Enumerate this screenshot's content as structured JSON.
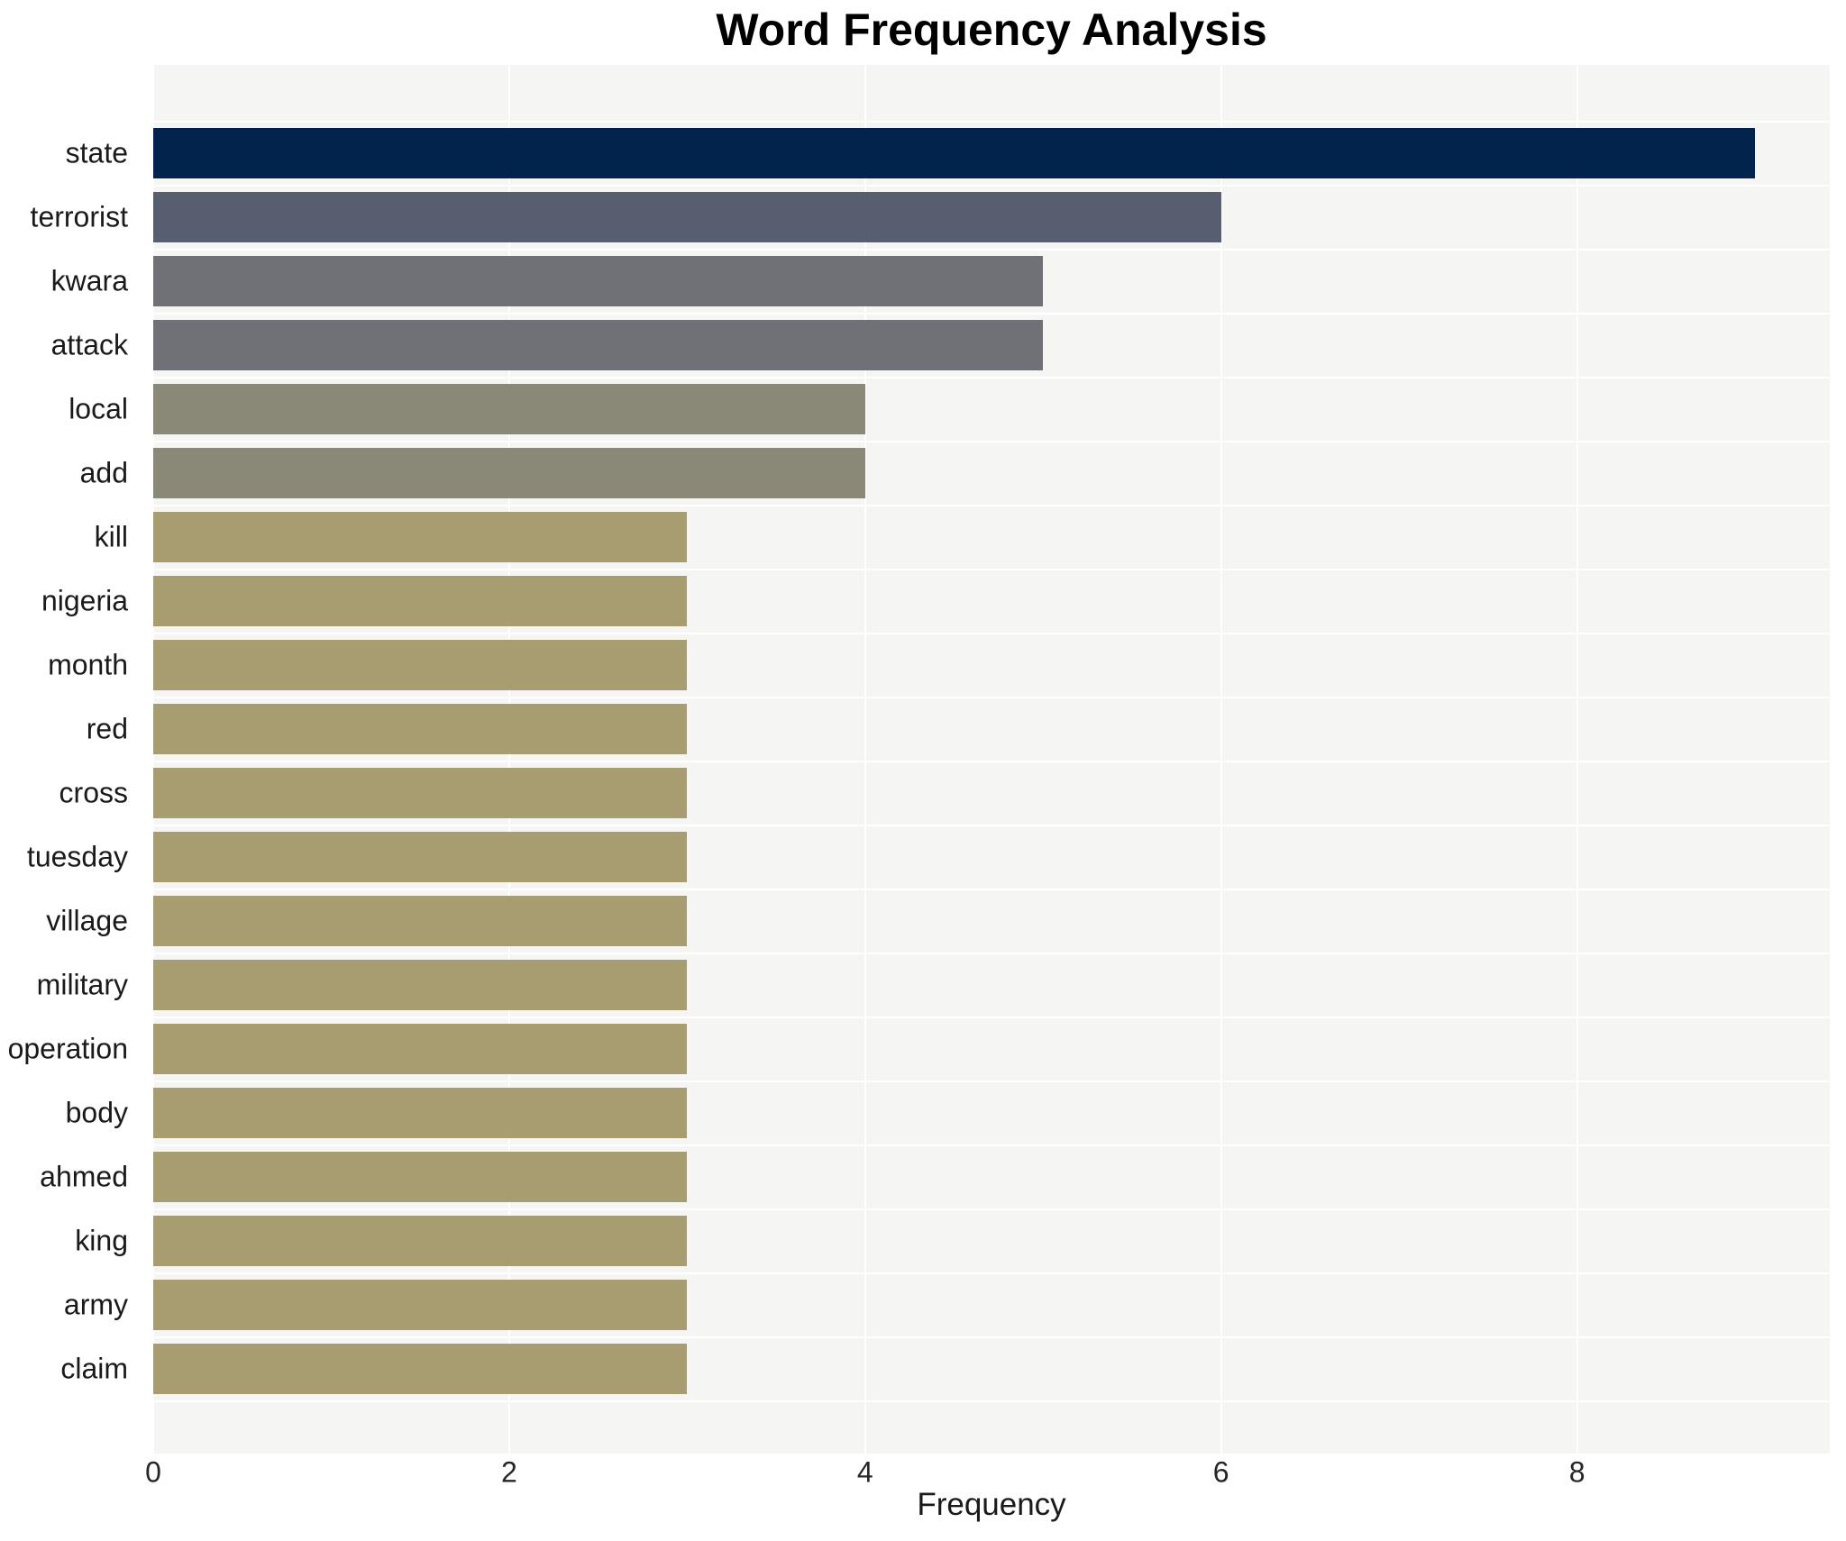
{
  "chart_data": {
    "type": "bar",
    "orientation": "horizontal",
    "title": "Word Frequency Analysis",
    "xlabel": "Frequency",
    "ylabel": "",
    "categories": [
      "state",
      "terrorist",
      "kwara",
      "attack",
      "local",
      "add",
      "kill",
      "nigeria",
      "month",
      "red",
      "cross",
      "tuesday",
      "village",
      "military",
      "operation",
      "body",
      "ahmed",
      "king",
      "army",
      "claim"
    ],
    "values": [
      9,
      6,
      5,
      5,
      4,
      4,
      3,
      3,
      3,
      3,
      3,
      3,
      3,
      3,
      3,
      3,
      3,
      3,
      3,
      3
    ],
    "bar_colors": [
      "#02234c",
      "#575e6f",
      "#707176",
      "#707176",
      "#8a8877",
      "#8a8877",
      "#a79d70",
      "#a79d70",
      "#a79d70",
      "#a79d70",
      "#a79d70",
      "#a79d70",
      "#a79d70",
      "#a79d70",
      "#a79d70",
      "#a79d70",
      "#a79d70",
      "#a79d70",
      "#a79d70",
      "#a79d70"
    ],
    "xticks": [
      0,
      2,
      4,
      6,
      8
    ],
    "xlim": [
      0,
      9.42
    ],
    "grid": true,
    "legend_position": "none"
  },
  "colors": {
    "plot_background": "#f5f5f4",
    "gridline": "#ffffff",
    "title_text": "#000000",
    "axis_text": "#262626",
    "figure_background": "#ffffff"
  }
}
